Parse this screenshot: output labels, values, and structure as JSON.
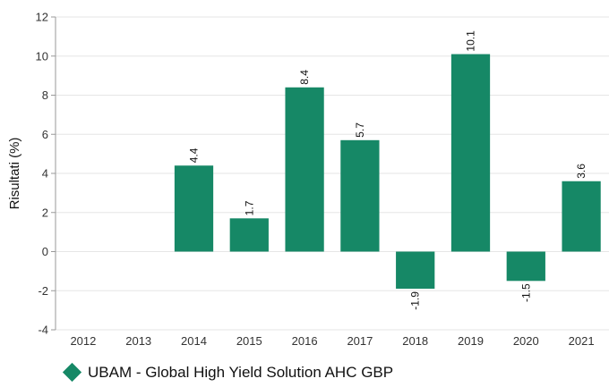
{
  "chart_data": {
    "type": "bar",
    "categories": [
      "2012",
      "2013",
      "2014",
      "2015",
      "2016",
      "2017",
      "2018",
      "2019",
      "2020",
      "2021"
    ],
    "series": [
      {
        "name": "UBAM - Global High Yield Solution AHC GBP",
        "values": [
          null,
          null,
          4.4,
          1.7,
          8.4,
          5.7,
          -1.9,
          10.1,
          -1.5,
          3.6
        ],
        "labels": [
          "",
          "",
          "4.4",
          "1.7",
          "8.4",
          "5.7",
          "-1.9",
          "10.1",
          "-1.5",
          "3.6"
        ]
      }
    ],
    "ylabel": "Risultati (%)",
    "ylim": [
      -4,
      12
    ],
    "yticks": [
      -4,
      -2,
      0,
      2,
      4,
      6,
      8,
      10,
      12
    ],
    "grid": true,
    "legend_position": "bottom-left",
    "colors": {
      "bar": "#168866",
      "grid": "#e6e6e6",
      "axis": "#999999",
      "legend_marker": "#168866"
    }
  }
}
